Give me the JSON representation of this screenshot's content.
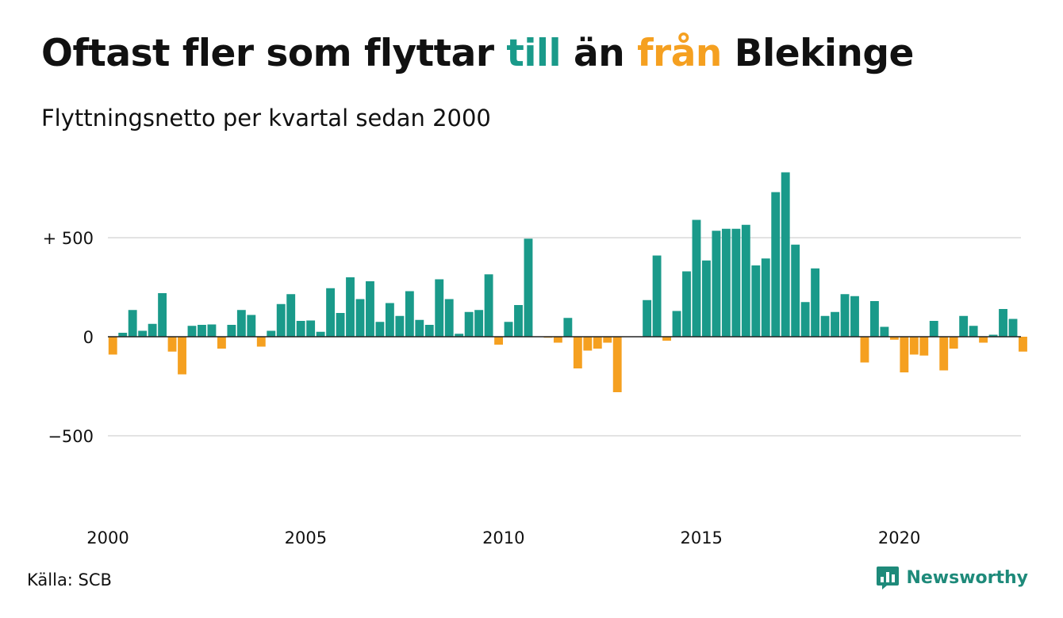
{
  "title": {
    "part1": "Oftast fler som flyttar ",
    "part2": "till",
    "part3": " än ",
    "part4": "från",
    "part5": " Blekinge"
  },
  "subtitle": "Flyttningsnetto per kvartal sedan 2000",
  "source": "Källa: SCB",
  "brand": "Newsworthy",
  "colors": {
    "positive": "#1a9a8a",
    "negative": "#f5a020",
    "grid": "#e3e3e3",
    "zero": "#222222"
  },
  "chart_data": {
    "type": "bar",
    "title": "Oftast fler som flyttar till än från Blekinge",
    "subtitle": "Flyttningsnetto per kvartal sedan 2000",
    "x_start": 2000,
    "periods_per_year": 4,
    "ylim": [
      -750,
      900
    ],
    "yticks": [
      500,
      0,
      -500
    ],
    "ytick_labels": [
      "+ 500",
      "0",
      "−500"
    ],
    "xticks": [
      2000,
      2005,
      2010,
      2015,
      2020
    ],
    "xtick_labels": [
      "2000",
      "2005",
      "2010",
      "2015",
      "2020"
    ],
    "grid": true,
    "values": [
      -90,
      20,
      135,
      30,
      65,
      220,
      -75,
      -190,
      55,
      60,
      62,
      -60,
      60,
      135,
      110,
      -50,
      30,
      165,
      215,
      80,
      82,
      25,
      245,
      120,
      300,
      190,
      280,
      75,
      170,
      105,
      230,
      85,
      60,
      290,
      190,
      15,
      125,
      135,
      315,
      -40,
      75,
      160,
      495,
      0,
      -5,
      -30,
      95,
      -160,
      -70,
      -60,
      -30,
      -280,
      0,
      0,
      185,
      410,
      -20,
      130,
      330,
      590,
      385,
      535,
      545,
      545,
      565,
      360,
      395,
      730,
      830,
      465,
      175,
      345,
      105,
      125,
      215,
      205,
      -130,
      180,
      50,
      -15,
      -180,
      -90,
      -95,
      80,
      -170,
      -60,
      105,
      55,
      -30,
      10,
      140,
      90,
      -75
    ]
  }
}
